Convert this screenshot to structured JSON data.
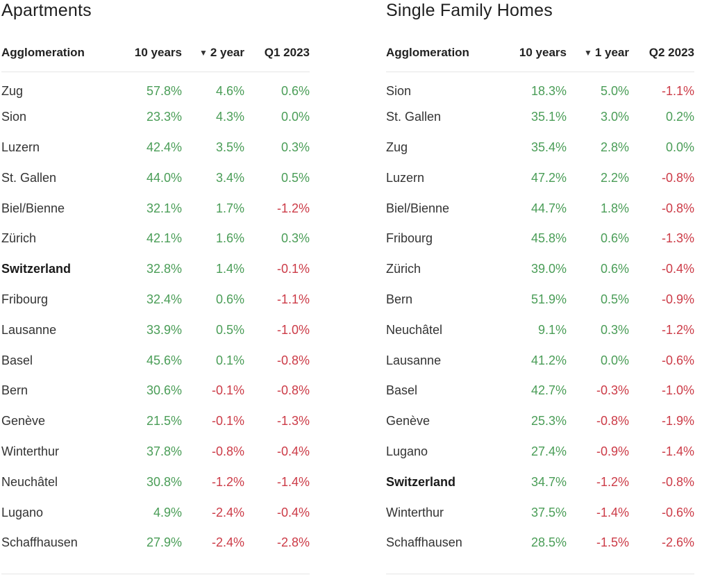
{
  "colors": {
    "positive": "#4a9d57",
    "negative": "#cc3b47",
    "text": "#333333"
  },
  "chart_data": [
    {
      "type": "table",
      "title": "Apartments",
      "columns": [
        "Agglomeration",
        "10 years",
        "2 year",
        "Q1 2023"
      ],
      "sort_indicator": "▼",
      "sorted_column": 2,
      "highlight_row": "Switzerland",
      "rows": [
        [
          "Zug",
          "57.8%",
          "4.6%",
          "0.6%"
        ],
        [
          "Sion",
          "23.3%",
          "4.3%",
          "0.0%"
        ],
        [
          "Luzern",
          "42.4%",
          "3.5%",
          "0.3%"
        ],
        [
          "St. Gallen",
          "44.0%",
          "3.4%",
          "0.5%"
        ],
        [
          "Biel/Bienne",
          "32.1%",
          "1.7%",
          "-1.2%"
        ],
        [
          "Zürich",
          "42.1%",
          "1.6%",
          "0.3%"
        ],
        [
          "Switzerland",
          "32.8%",
          "1.4%",
          "-0.1%"
        ],
        [
          "Fribourg",
          "32.4%",
          "0.6%",
          "-1.1%"
        ],
        [
          "Lausanne",
          "33.9%",
          "0.5%",
          "-1.0%"
        ],
        [
          "Basel",
          "45.6%",
          "0.1%",
          "-0.8%"
        ],
        [
          "Bern",
          "30.6%",
          "-0.1%",
          "-0.8%"
        ],
        [
          "Genève",
          "21.5%",
          "-0.1%",
          "-1.3%"
        ],
        [
          "Winterthur",
          "37.8%",
          "-0.8%",
          "-0.4%"
        ],
        [
          "Neuchâtel",
          "30.8%",
          "-1.2%",
          "-1.4%"
        ],
        [
          "Lugano",
          "4.9%",
          "-2.4%",
          "-0.4%"
        ],
        [
          "Schaffhausen",
          "27.9%",
          "-2.4%",
          "-2.8%"
        ]
      ]
    },
    {
      "type": "table",
      "title": "Single Family Homes",
      "columns": [
        "Agglomeration",
        "10 years",
        "1 year",
        "Q2 2023"
      ],
      "sort_indicator": "▼",
      "sorted_column": 2,
      "highlight_row": "Switzerland",
      "rows": [
        [
          "Sion",
          "18.3%",
          "5.0%",
          "-1.1%"
        ],
        [
          "St. Gallen",
          "35.1%",
          "3.0%",
          "0.2%"
        ],
        [
          "Zug",
          "35.4%",
          "2.8%",
          "0.0%"
        ],
        [
          "Luzern",
          "47.2%",
          "2.2%",
          "-0.8%"
        ],
        [
          "Biel/Bienne",
          "44.7%",
          "1.8%",
          "-0.8%"
        ],
        [
          "Fribourg",
          "45.8%",
          "0.6%",
          "-1.3%"
        ],
        [
          "Zürich",
          "39.0%",
          "0.6%",
          "-0.4%"
        ],
        [
          "Bern",
          "51.9%",
          "0.5%",
          "-0.9%"
        ],
        [
          "Neuchâtel",
          "9.1%",
          "0.3%",
          "-1.2%"
        ],
        [
          "Lausanne",
          "41.2%",
          "0.0%",
          "-0.6%"
        ],
        [
          "Basel",
          "42.7%",
          "-0.3%",
          "-1.0%"
        ],
        [
          "Genève",
          "25.3%",
          "-0.8%",
          "-1.9%"
        ],
        [
          "Lugano",
          "27.4%",
          "-0.9%",
          "-1.4%"
        ],
        [
          "Switzerland",
          "34.7%",
          "-1.2%",
          "-0.8%"
        ],
        [
          "Winterthur",
          "37.5%",
          "-1.4%",
          "-0.6%"
        ],
        [
          "Schaffhausen",
          "28.5%",
          "-1.5%",
          "-2.6%"
        ]
      ]
    }
  ]
}
